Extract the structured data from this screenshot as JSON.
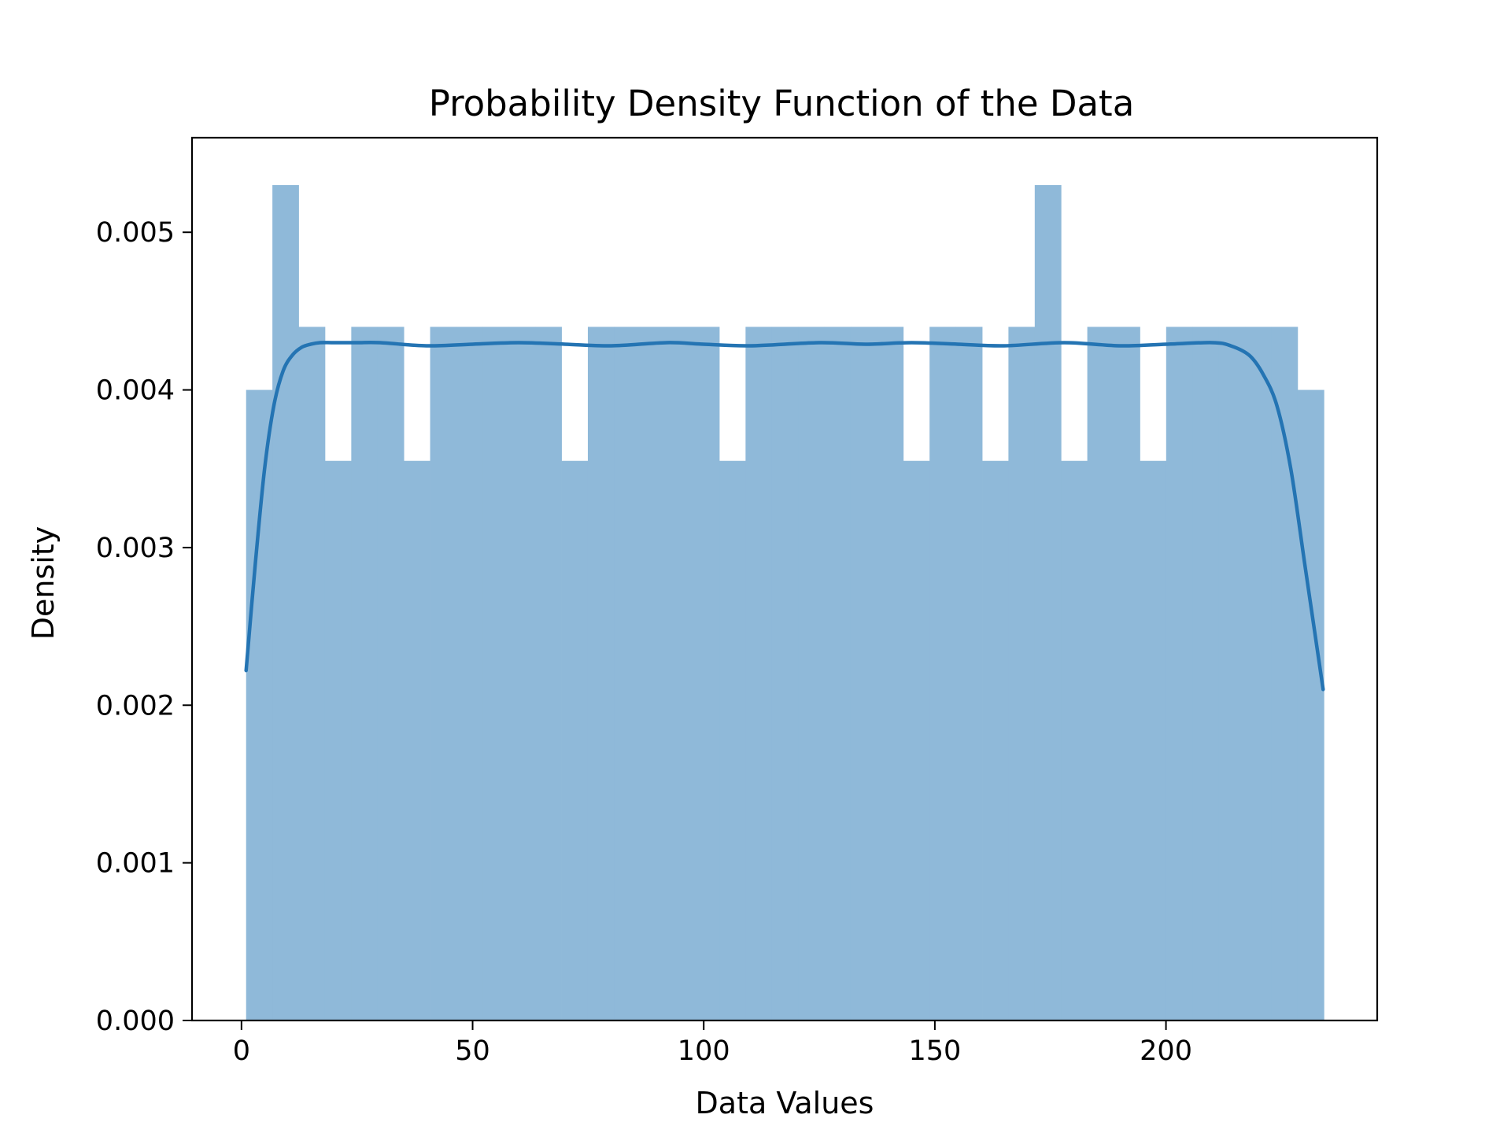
{
  "chart_data": {
    "type": "bar",
    "title": "Probability Density Function of the Data",
    "xlabel": "Data Values",
    "ylabel": "Density",
    "xlim": [
      -10.7,
      245.7
    ],
    "ylim": [
      0,
      0.0056
    ],
    "x_ticks": [
      "0",
      "50",
      "100",
      "150",
      "200"
    ],
    "x_tick_values": [
      0,
      50,
      100,
      150,
      200
    ],
    "y_ticks": [
      "0.000",
      "0.001",
      "0.002",
      "0.003",
      "0.004",
      "0.005"
    ],
    "y_tick_values": [
      0,
      0.001,
      0.002,
      0.003,
      0.004,
      0.005
    ],
    "grid": false,
    "colors": {
      "histogram": "#8fb9d9",
      "kde": "#2474b3"
    },
    "histogram": {
      "bin_edges": [
        1,
        6.69,
        12.37,
        18.06,
        23.75,
        29.43,
        35.12,
        40.81,
        46.5,
        52.18,
        57.87,
        63.56,
        69.24,
        74.93,
        80.62,
        86.3,
        91.99,
        97.68,
        103.37,
        109.05,
        114.74,
        120.43,
        126.11,
        131.8,
        137.49,
        143.17,
        148.86,
        154.55,
        160.24,
        165.92,
        171.61,
        177.3,
        182.98,
        188.67,
        194.36,
        200.04,
        205.73,
        211.42,
        217.11,
        222.79,
        228.48,
        234.17
      ],
      "density": [
        0.004,
        0.0053,
        0.0044,
        0.00355,
        0.0044,
        0.0044,
        0.00355,
        0.0044,
        0.0044,
        0.0044,
        0.0044,
        0.0044,
        0.00355,
        0.0044,
        0.0044,
        0.0044,
        0.0044,
        0.0044,
        0.00355,
        0.0044,
        0.0044,
        0.0044,
        0.0044,
        0.0044,
        0.0044,
        0.00355,
        0.0044,
        0.0044,
        0.00355,
        0.0044,
        0.0053,
        0.00355,
        0.0044,
        0.0044,
        0.00355,
        0.0044,
        0.0044,
        0.0044,
        0.0044,
        0.0044,
        0.004
      ]
    },
    "kde": {
      "x": [
        1,
        3,
        5,
        7,
        9,
        11,
        13,
        15,
        17,
        20,
        25,
        30,
        40,
        50,
        60,
        70,
        80,
        92,
        100,
        110,
        125,
        135,
        145,
        155,
        165,
        178,
        190,
        200,
        210,
        214,
        218,
        221,
        224,
        227,
        230,
        232,
        234
      ],
      "y": [
        0.00222,
        0.0029,
        0.0035,
        0.0039,
        0.00412,
        0.00422,
        0.00427,
        0.00429,
        0.0043,
        0.0043,
        0.0043,
        0.0043,
        0.00428,
        0.00429,
        0.0043,
        0.00429,
        0.00428,
        0.0043,
        0.00429,
        0.00428,
        0.0043,
        0.00429,
        0.0043,
        0.00429,
        0.00428,
        0.0043,
        0.00428,
        0.00429,
        0.0043,
        0.00428,
        0.00422,
        0.0041,
        0.0039,
        0.0035,
        0.0029,
        0.0025,
        0.0021
      ]
    }
  }
}
